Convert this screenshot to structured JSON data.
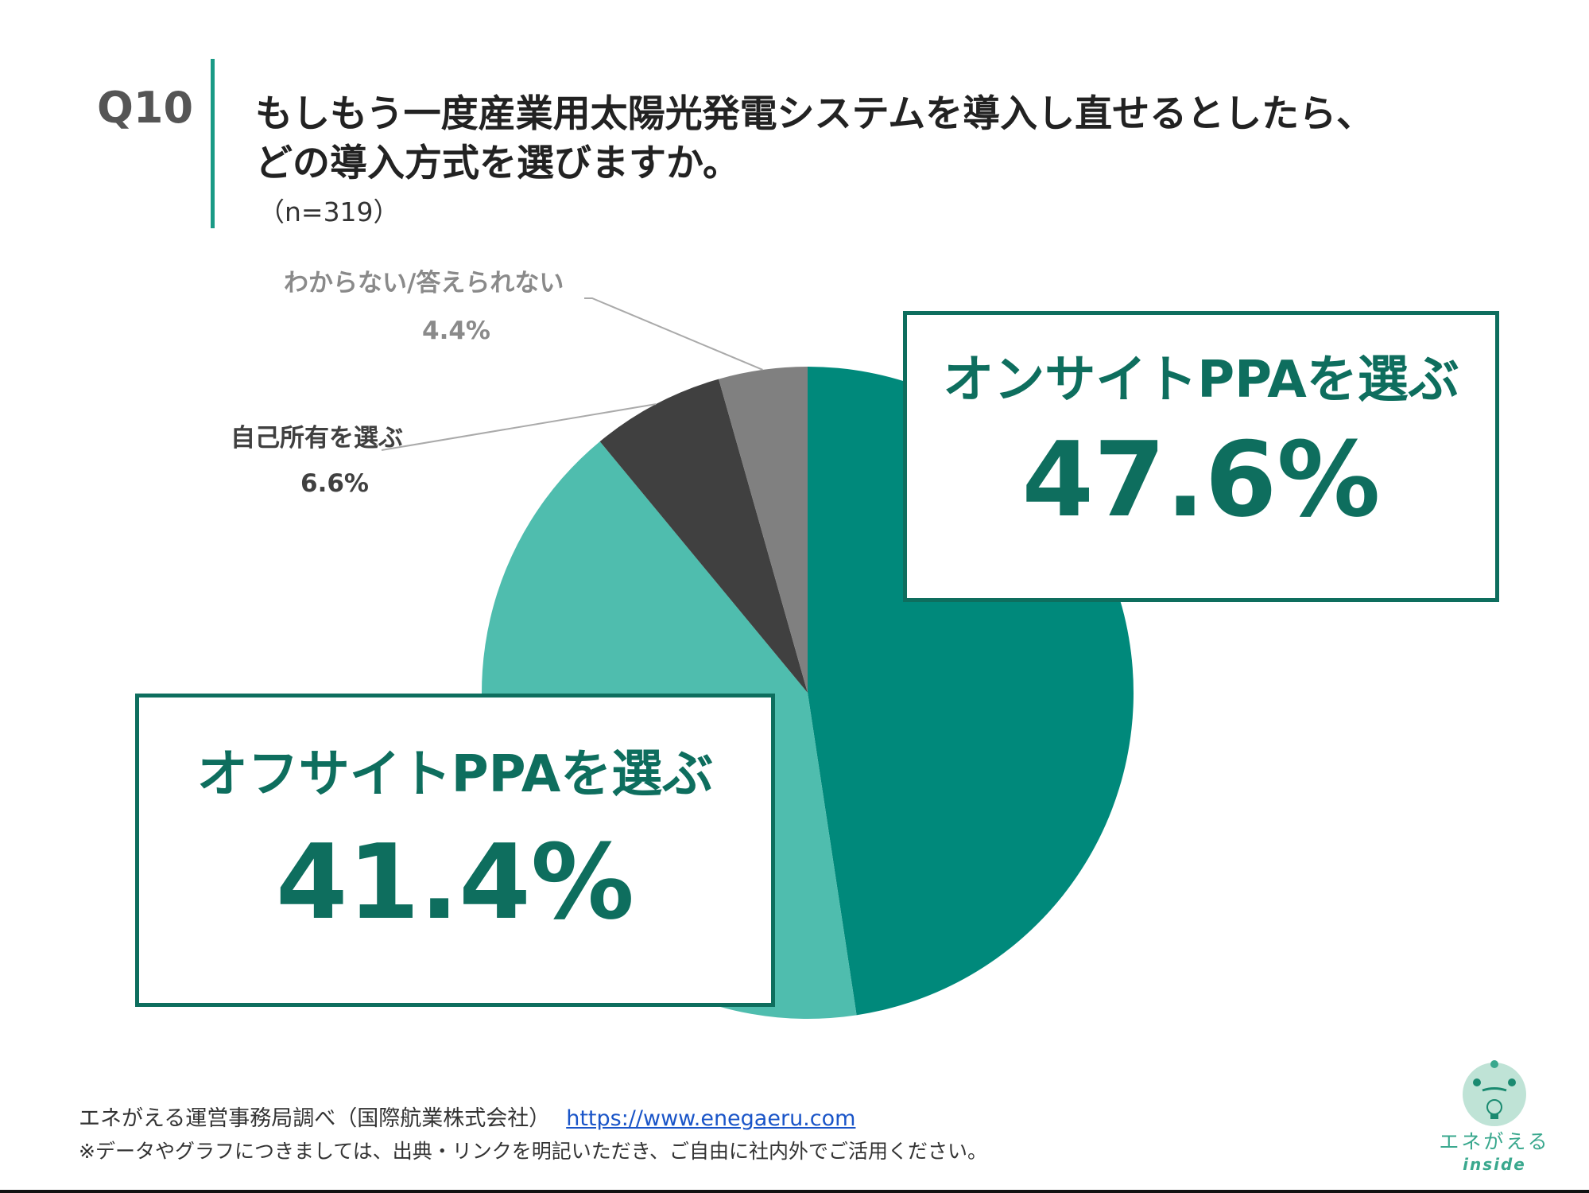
{
  "header": {
    "qnum": "Q10",
    "title_line1": "もしもう一度産業用太陽光発電システムを導入し直せるとしたら、",
    "title_line2": "どの導入方式を選びますか。",
    "sample": "（n=319）"
  },
  "chart_data": {
    "type": "pie",
    "start": "12 o'clock",
    "direction": "clockwise",
    "slices": [
      {
        "label": "オンサイトPPAを選ぶ",
        "value": 47.6,
        "display": "47.6%",
        "color": "#00897B"
      },
      {
        "label": "オフサイトPPAを選ぶ",
        "value": 41.4,
        "display": "41.4%",
        "color": "#4FBDAE"
      },
      {
        "label": "自己所有を選ぶ",
        "value": 6.6,
        "display": "6.6%",
        "color": "#404040"
      },
      {
        "label": "わからない/答えられない",
        "value": 4.4,
        "display": "4.4%",
        "color": "#808080"
      }
    ]
  },
  "footer": {
    "source": "エネがえる運営事務局調べ（国際航業株式会社）",
    "url": "https://www.enegaeru.com",
    "note": "※データやグラフにつきましては、出典・リンクを明記いただき、ご自由に社内外でご活用ください。"
  },
  "logo": {
    "name": "エネがえる",
    "sub": "inside"
  }
}
